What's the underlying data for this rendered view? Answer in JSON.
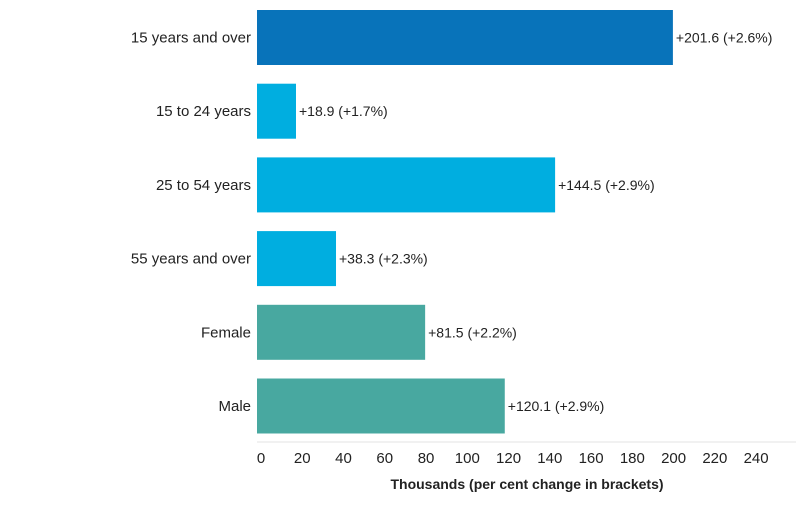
{
  "chart_data": {
    "type": "bar",
    "orientation": "horizontal",
    "categories": [
      "15 years and over",
      "15 to 24 years",
      "25 to 54 years",
      "55 years and over",
      "Female",
      "Male"
    ],
    "values": [
      201.6,
      18.9,
      144.5,
      38.3,
      81.5,
      120.1
    ],
    "value_labels": [
      "+201.6 (+2.6%)",
      "+18.9 (+1.7%)",
      "+144.5 (+2.9%)",
      "+38.3 (+2.3%)",
      "+81.5 (+2.2%)",
      "+120.1 (+2.9%)"
    ],
    "bar_colors": [
      "#0873ba",
      "#00aee0",
      "#00aee0",
      "#00aee0",
      "#48a8a0",
      "#48a8a0"
    ],
    "title": "",
    "xlabel": "Thousands (per cent change in brackets)",
    "ylabel": "",
    "xlim": [
      0,
      265
    ],
    "xticks": [
      0,
      20,
      40,
      60,
      80,
      100,
      120,
      140,
      160,
      180,
      200,
      220,
      240
    ],
    "grid": false,
    "legend": "none"
  }
}
